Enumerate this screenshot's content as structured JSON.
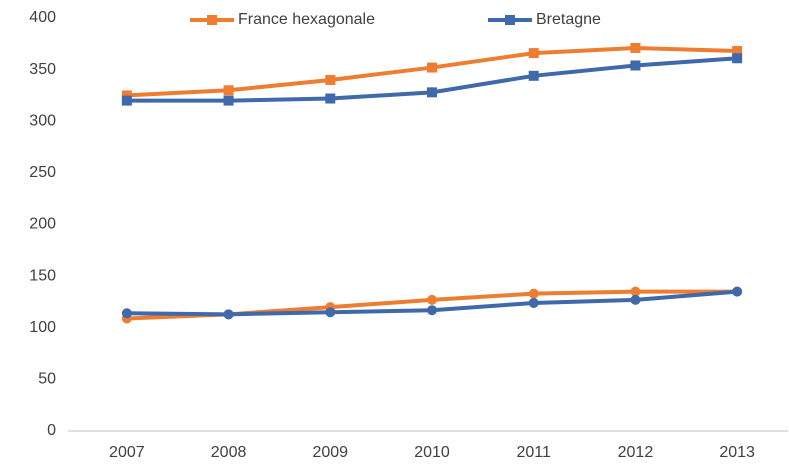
{
  "chart_data": {
    "type": "line",
    "categories": [
      "2007",
      "2008",
      "2009",
      "2010",
      "2011",
      "2012",
      "2013"
    ],
    "series": [
      {
        "name": "France hexagonale",
        "color": "#ed7d31",
        "marker": "square",
        "values": [
          325,
          330,
          340,
          352,
          366,
          371,
          368
        ]
      },
      {
        "name": "Bretagne",
        "color": "#3f69aa",
        "marker": "square",
        "values": [
          320,
          320,
          322,
          328,
          344,
          354,
          361
        ]
      },
      {
        "color": "#ed7d31",
        "marker": "circle",
        "values": [
          109,
          113,
          120,
          127,
          133,
          135,
          135
        ]
      },
      {
        "color": "#3f69aa",
        "marker": "circle",
        "values": [
          114,
          113,
          115,
          117,
          124,
          127,
          135
        ]
      }
    ],
    "ylim": [
      0,
      400
    ],
    "yticks": [
      0,
      50,
      100,
      150,
      200,
      250,
      300,
      350,
      400
    ],
    "grid": false,
    "legend": "top"
  }
}
